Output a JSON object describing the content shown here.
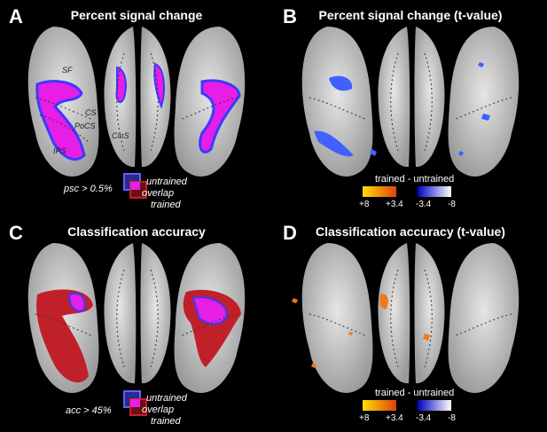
{
  "panels": {
    "a": {
      "letter": "A",
      "title": "Percent signal change",
      "threshold": "psc > 0.5%"
    },
    "b": {
      "letter": "B",
      "title": "Percent signal change (t-value)"
    },
    "c": {
      "letter": "C",
      "title": "Classification accuracy",
      "threshold": "acc > 45%"
    },
    "d": {
      "letter": "D",
      "title": "Classification accuracy (t-value)"
    }
  },
  "sulci": {
    "sf": "SF",
    "cs": "CS",
    "pocs": "PoCS",
    "ips": "IPS",
    "cins": "CinS"
  },
  "overlap_legend": {
    "untrained": "untrained",
    "overlap": "overlap",
    "trained": "trained"
  },
  "colorbar": {
    "title": "trained - untrained",
    "ticks": [
      "+8",
      "+3.4",
      "-3.4",
      "-8"
    ]
  },
  "colors": {
    "untrained": "#3a3aff",
    "trained": "#c0202a",
    "overlap": "#e61ee6",
    "positive_t": "#f07818",
    "negative_t": "#4060ff",
    "brain_surface": "#cfcfcf"
  }
}
